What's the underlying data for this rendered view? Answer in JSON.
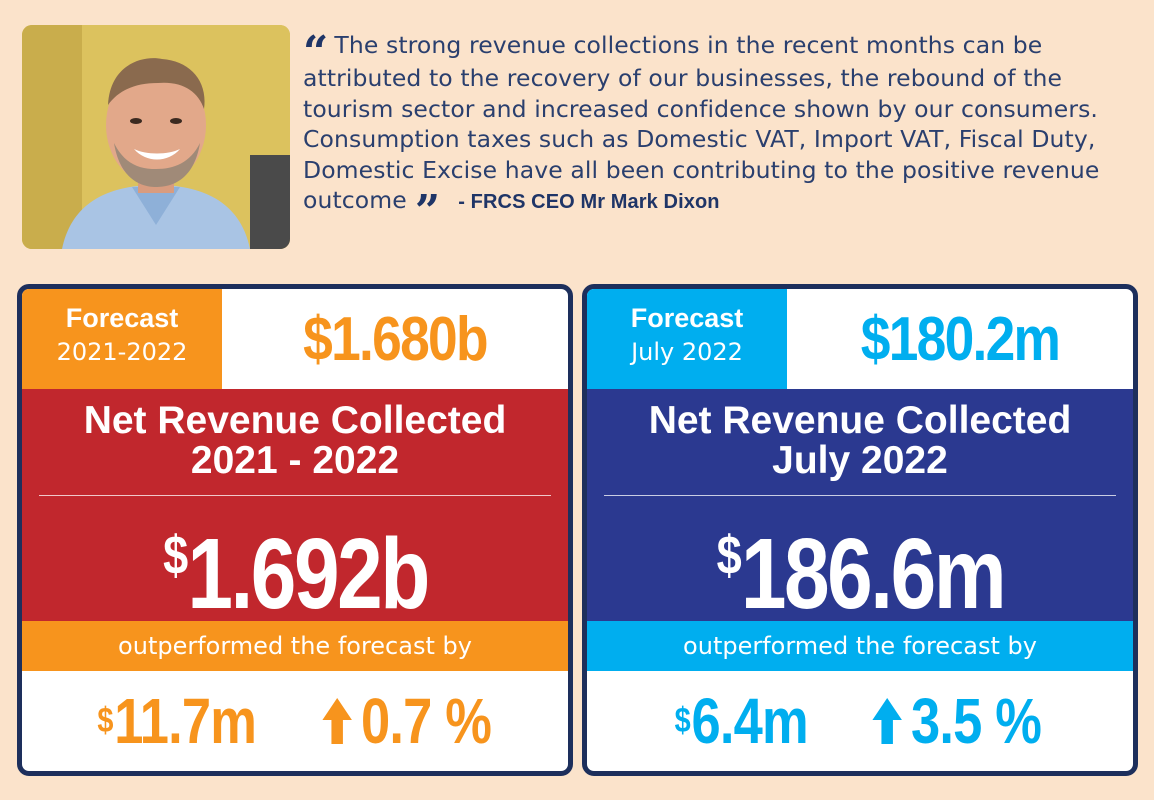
{
  "quote": {
    "text": "The strong revenue collections in the recent months can be attributed to the recovery of our businesses, the rebound of the tourism sector and increased confidence shown by our consumers. Consumption taxes such as Domestic VAT, Import VAT, Fiscal Duty, Domestic Excise have all been contributing to the positive revenue outcome",
    "open_mark": "“",
    "close_mark": "”",
    "author": "- FRCS CEO Mr Mark Dixon"
  },
  "cards": [
    {
      "forecast_label": "Forecast",
      "forecast_period": "2021-2022",
      "forecast_amount": "$1.680b",
      "title_line1": "Net Revenue Collected",
      "title_line2": "2021 - 2022",
      "currency": "$",
      "collected_amount": "1.692b",
      "outperformed_text": "outperformed the forecast by",
      "diff_currency": "$",
      "diff_amount": "11.7m",
      "diff_percent": "0.7 %",
      "colors": {
        "accent": "#f7941d",
        "panel": "#c1272d"
      }
    },
    {
      "forecast_label": "Forecast",
      "forecast_period": "July 2022",
      "forecast_amount": "$180.2m",
      "title_line1": "Net Revenue Collected",
      "title_line2": "July 2022",
      "currency": "$",
      "collected_amount": "186.6m",
      "outperformed_text": "outperformed the forecast by",
      "diff_currency": "$",
      "diff_amount": "6.4m",
      "diff_percent": "3.5 %",
      "colors": {
        "accent": "#00aeef",
        "panel": "#2b3990"
      }
    }
  ],
  "icons": {
    "arrow": "arrow-up-icon",
    "photo": "ceo-photo"
  },
  "colors": {
    "background": "#fbe3cb",
    "border": "#1d2f5c",
    "quote_text": "#2a3f6e"
  }
}
